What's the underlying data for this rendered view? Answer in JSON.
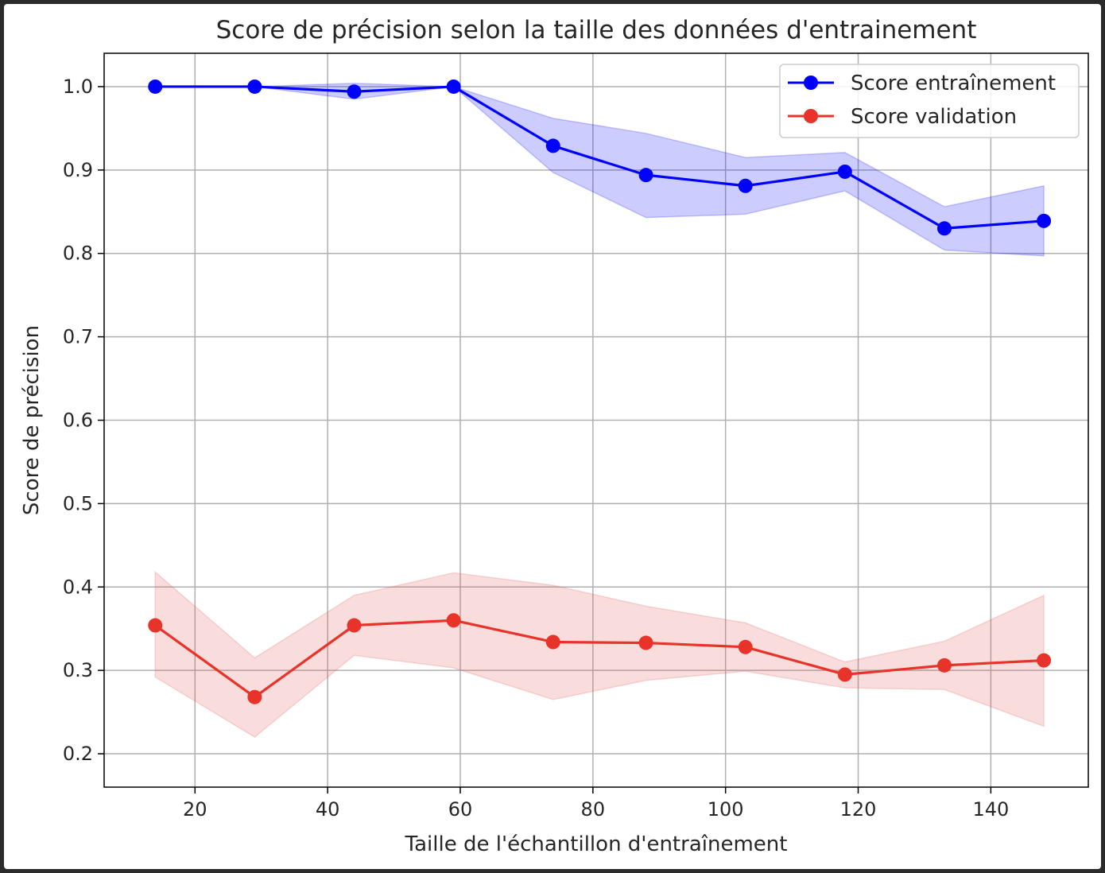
{
  "chart_data": {
    "type": "line",
    "title": "Score de précision selon la taille des données d'entrainement",
    "xlabel": "Taille de l'échantillon d'entraînement",
    "ylabel": "Score de précision",
    "xlim": [
      6.3,
      154.7
    ],
    "ylim": [
      0.16,
      1.04
    ],
    "xticks": [
      20,
      40,
      60,
      80,
      100,
      120,
      140
    ],
    "yticks": [
      0.2,
      0.3,
      0.4,
      0.5,
      0.6,
      0.7,
      0.8,
      0.9,
      1.0
    ],
    "xtick_labels": [
      "20",
      "40",
      "60",
      "80",
      "100",
      "120",
      "140"
    ],
    "ytick_labels": [
      "0.2",
      "0.3",
      "0.4",
      "0.5",
      "0.6",
      "0.7",
      "0.8",
      "0.9",
      "1.0"
    ],
    "grid": true,
    "legend_position": "top-right",
    "x": [
      14,
      29,
      44,
      59,
      74,
      88,
      103,
      118,
      133,
      148
    ],
    "series": [
      {
        "name": "Score entraînement",
        "color": "#0000ff",
        "band_color": "#0000ff",
        "values": [
          1.0,
          1.0,
          0.994,
          1.0,
          0.929,
          0.894,
          0.881,
          0.898,
          0.83,
          0.839
        ],
        "lower": [
          1.0,
          1.0,
          0.985,
          1.0,
          0.897,
          0.843,
          0.847,
          0.875,
          0.804,
          0.797
        ],
        "upper": [
          1.0,
          1.0,
          1.004,
          1.0,
          0.962,
          0.944,
          0.915,
          0.921,
          0.856,
          0.881
        ]
      },
      {
        "name": "Score validation",
        "color": "#e8332a",
        "band_color": "#e35050",
        "values": [
          0.354,
          0.268,
          0.354,
          0.36,
          0.334,
          0.333,
          0.328,
          0.295,
          0.306,
          0.312
        ],
        "lower": [
          0.292,
          0.22,
          0.318,
          0.303,
          0.265,
          0.288,
          0.299,
          0.279,
          0.277,
          0.233
        ],
        "upper": [
          0.418,
          0.315,
          0.39,
          0.417,
          0.402,
          0.377,
          0.357,
          0.31,
          0.335,
          0.39
        ]
      }
    ]
  }
}
